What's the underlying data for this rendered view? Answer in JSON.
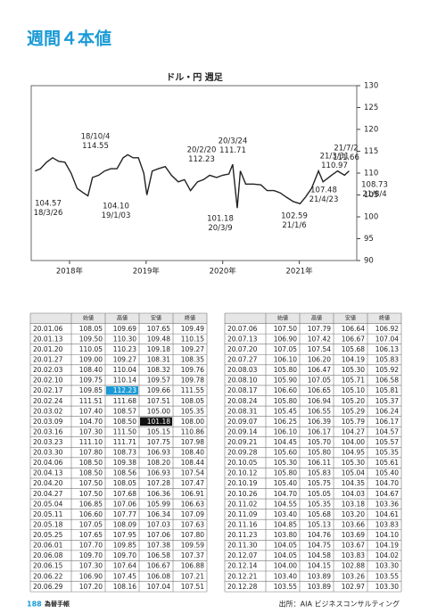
{
  "header": {
    "title": "週間４本値"
  },
  "chart_data": {
    "type": "line",
    "title": "ドル・円 週足",
    "color": "#222222",
    "x": [
      2017.55,
      2017.62,
      2017.7,
      2017.78,
      2017.86,
      2017.94,
      2018.02,
      2018.1,
      2018.18,
      2018.24,
      2018.3,
      2018.38,
      2018.46,
      2018.54,
      2018.62,
      2018.7,
      2018.76,
      2018.83,
      2018.9,
      2018.97,
      2019.01,
      2019.08,
      2019.16,
      2019.25,
      2019.33,
      2019.42,
      2019.5,
      2019.58,
      2019.67,
      2019.75,
      2019.83,
      2019.92,
      2020.0,
      2020.08,
      2020.13,
      2020.19,
      2020.23,
      2020.3,
      2020.4,
      2020.5,
      2020.58,
      2020.67,
      2020.75,
      2020.83,
      2020.92,
      2021.01,
      2021.08,
      2021.16,
      2021.25,
      2021.31,
      2021.42,
      2021.5,
      2021.59,
      2021.65
    ],
    "values": [
      110.5,
      111,
      112.5,
      113.5,
      112.7,
      112.5,
      110,
      106.5,
      105.5,
      104.8,
      109,
      109.5,
      110.5,
      111,
      111,
      113.5,
      114.2,
      113.5,
      113.5,
      110,
      105,
      110.5,
      111,
      111.5,
      109.5,
      108,
      108.5,
      106,
      108,
      108.5,
      109.5,
      109,
      109.5,
      109.8,
      112,
      102,
      110.5,
      107.5,
      107.5,
      107.3,
      106,
      106,
      105.5,
      104.5,
      103.5,
      103,
      104.5,
      106.5,
      110.5,
      108,
      109.5,
      110.5,
      109.5,
      110.5
    ],
    "xlim": [
      2017.5,
      2021.75
    ],
    "ylim": [
      90,
      130
    ],
    "xticks": [
      {
        "value": 2018,
        "label": "2018年"
      },
      {
        "value": 2019,
        "label": "2019年"
      },
      {
        "value": 2020,
        "label": "2020年"
      },
      {
        "value": 2021,
        "label": "2021年"
      }
    ],
    "yticks": [
      90,
      95,
      100,
      105,
      110,
      115,
      120,
      125,
      130
    ],
    "annotations": [
      {
        "date": "18/10/4",
        "value": "114.55"
      },
      {
        "date": "18/3/26",
        "value": "104.57"
      },
      {
        "date": "19/1/03",
        "value": "104.10"
      },
      {
        "date": "20/2/20",
        "value": "112.23"
      },
      {
        "date": "20/3/24",
        "value": "111.71"
      },
      {
        "date": "20/3/9",
        "value": "101.18"
      },
      {
        "date": "21/1/6",
        "value": "102.59"
      },
      {
        "date": "21/3/31",
        "value": "110.97"
      },
      {
        "date": "21/4/23",
        "value": "107.48"
      },
      {
        "date": "21/7/2",
        "value": "111.66"
      },
      {
        "date": "21/8/4",
        "value": "108.73"
      }
    ]
  },
  "tables": [
    {
      "header": [
        "始値",
        "高値",
        "安値",
        "終値"
      ],
      "rows": [
        [
          "20.01.06",
          "108.05",
          "109.69",
          "107.65",
          "109.49"
        ],
        [
          "20.01.13",
          "109.50",
          "110.30",
          "109.48",
          "110.15"
        ],
        [
          "20.01.20",
          "110.05",
          "110.23",
          "109.18",
          "109.27"
        ],
        [
          "20.01.27",
          "109.00",
          "109.27",
          "108.31",
          "108.35"
        ],
        [
          "20.02.03",
          "108.40",
          "110.04",
          "108.32",
          "109.76"
        ],
        [
          "20.02.10",
          "109.75",
          "110.14",
          "109.57",
          "109.78"
        ],
        [
          "20.02.17",
          "109.85",
          "112.23",
          "109.66",
          "111.55"
        ],
        [
          "20.02.24",
          "111.51",
          "111.68",
          "107.51",
          "108.05"
        ],
        [
          "20.03.02",
          "107.40",
          "108.57",
          "105.00",
          "105.35"
        ],
        [
          "20.03.09",
          "104.70",
          "108.50",
          "101.18",
          "108.00"
        ],
        [
          "20.03.16",
          "107.30",
          "111.50",
          "105.15",
          "110.86"
        ],
        [
          "20.03.23",
          "111.10",
          "111.71",
          "107.75",
          "107.98"
        ],
        [
          "20.03.30",
          "107.80",
          "108.73",
          "106.93",
          "108.40"
        ],
        [
          "20.04.06",
          "108.50",
          "109.38",
          "108.20",
          "108.44"
        ],
        [
          "20.04.13",
          "108.50",
          "108.56",
          "106.93",
          "107.54"
        ],
        [
          "20.04.20",
          "107.50",
          "108.05",
          "107.28",
          "107.47"
        ],
        [
          "20.04.27",
          "107.50",
          "107.68",
          "106.36",
          "106.91"
        ],
        [
          "20.05.04",
          "106.85",
          "107.06",
          "105.99",
          "106.63"
        ],
        [
          "20.05.11",
          "106.60",
          "107.77",
          "106.34",
          "107.09"
        ],
        [
          "20.05.18",
          "107.05",
          "108.09",
          "107.03",
          "107.63"
        ],
        [
          "20.05.25",
          "107.65",
          "107.95",
          "107.06",
          "107.80"
        ],
        [
          "20.06.01",
          "107.70",
          "109.85",
          "107.38",
          "109.59"
        ],
        [
          "20.06.08",
          "109.70",
          "109.70",
          "106.58",
          "107.37"
        ],
        [
          "20.06.15",
          "107.30",
          "107.64",
          "106.67",
          "106.88"
        ],
        [
          "20.06.22",
          "106.90",
          "107.45",
          "106.08",
          "107.21"
        ],
        [
          "20.06.29",
          "107.20",
          "108.16",
          "107.04",
          "107.51"
        ]
      ]
    },
    {
      "header": [
        "始値",
        "高値",
        "安値",
        "終値"
      ],
      "rows": [
        [
          "20.07.06",
          "107.50",
          "107.79",
          "106.64",
          "106.92"
        ],
        [
          "20.07.13",
          "106.90",
          "107.42",
          "106.67",
          "107.04"
        ],
        [
          "20.07.20",
          "107.05",
          "107.54",
          "105.68",
          "106.13"
        ],
        [
          "20.07.27",
          "106.10",
          "106.20",
          "104.19",
          "105.83"
        ],
        [
          "20.08.03",
          "105.80",
          "106.47",
          "105.30",
          "105.92"
        ],
        [
          "20.08.10",
          "105.90",
          "107.05",
          "105.71",
          "106.58"
        ],
        [
          "20.08.17",
          "106.60",
          "106.65",
          "105.10",
          "105.81"
        ],
        [
          "20.08.24",
          "105.80",
          "106.94",
          "105.20",
          "105.37"
        ],
        [
          "20.08.31",
          "105.45",
          "106.55",
          "105.29",
          "106.24"
        ],
        [
          "20.09.07",
          "106.25",
          "106.39",
          "105.79",
          "106.17"
        ],
        [
          "20.09.14",
          "106.10",
          "106.17",
          "104.27",
          "104.57"
        ],
        [
          "20.09.21",
          "104.45",
          "105.70",
          "104.00",
          "105.57"
        ],
        [
          "20.09.28",
          "105.60",
          "105.80",
          "104.95",
          "105.35"
        ],
        [
          "20.10.05",
          "105.30",
          "106.11",
          "105.30",
          "105.61"
        ],
        [
          "20.10.12",
          "105.80",
          "105.83",
          "105.04",
          "105.40"
        ],
        [
          "20.10.19",
          "105.40",
          "105.75",
          "104.35",
          "104.70"
        ],
        [
          "20.10.26",
          "104.70",
          "105.05",
          "104.03",
          "104.67"
        ],
        [
          "20.11.02",
          "104.55",
          "105.35",
          "103.18",
          "103.36"
        ],
        [
          "20.11.09",
          "103.40",
          "105.68",
          "103.20",
          "104.61"
        ],
        [
          "20.11.16",
          "104.85",
          "105.13",
          "103.66",
          "103.83"
        ],
        [
          "20.11.23",
          "103.80",
          "104.76",
          "103.69",
          "104.10"
        ],
        [
          "20.11.30",
          "104.05",
          "104.75",
          "103.67",
          "104.19"
        ],
        [
          "20.12.07",
          "104.05",
          "104.58",
          "103.83",
          "104.02"
        ],
        [
          "20.12.14",
          "104.00",
          "104.15",
          "102.88",
          "103.30"
        ],
        [
          "20.12.21",
          "103.40",
          "103.89",
          "103.26",
          "103.55"
        ],
        [
          "20.12.28",
          "103.55",
          "103.89",
          "102.97",
          "103.30"
        ]
      ]
    }
  ],
  "footer": {
    "source": "出所：AIA ビジネスコンサルティング",
    "page_number": "188",
    "book": "為替手帳"
  }
}
